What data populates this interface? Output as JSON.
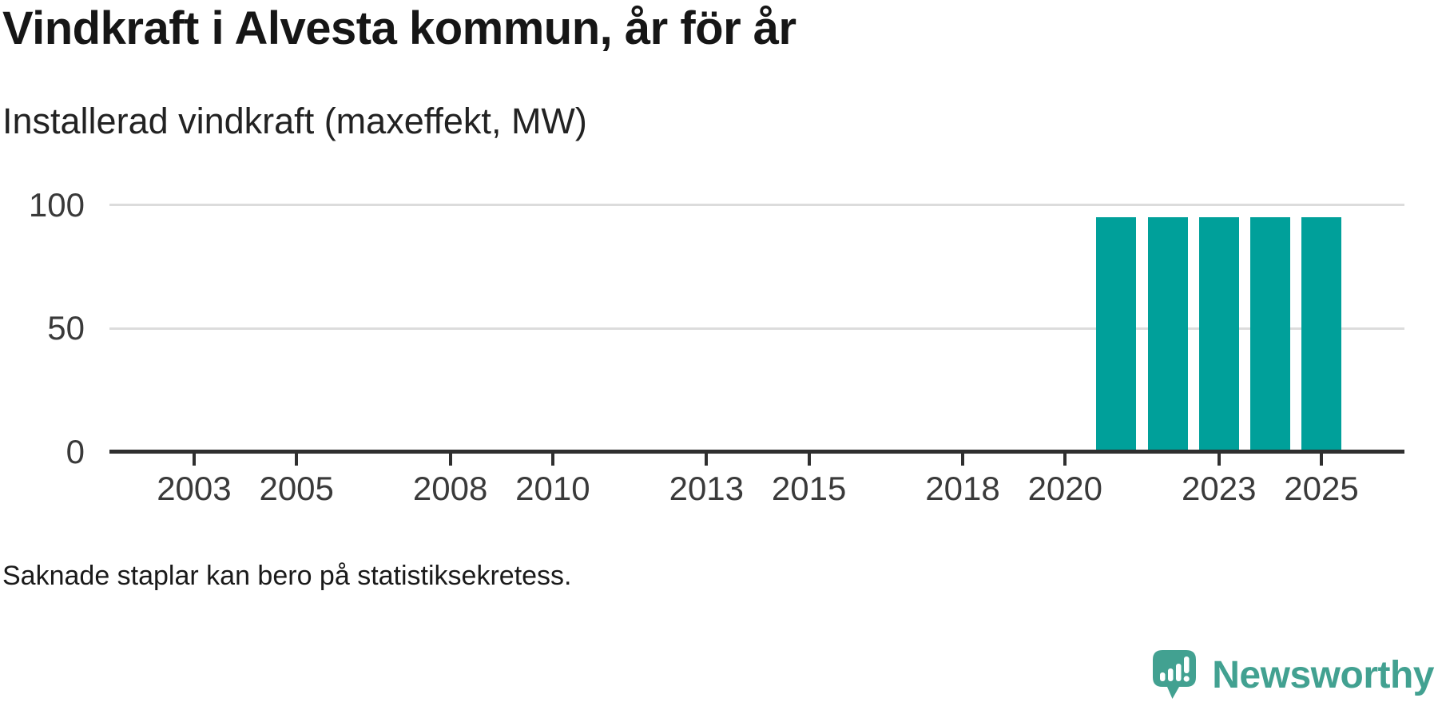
{
  "header": {
    "title": "Vindkraft i Alvesta kommun, år för år",
    "subtitle": "Installerad vindkraft (maxeffekt, MW)"
  },
  "footer": {
    "note": "Saknade staplar kan bero på statistiksekretess.",
    "brand": "Newsworthy"
  },
  "colors": {
    "bar": "#00a09a",
    "grid": "#dcdcdc",
    "axis": "#2f2f2f",
    "tick_label": "#3a3a3a",
    "text": "#1a1a1a",
    "brand": "#42a191"
  },
  "chart_data": {
    "type": "bar",
    "title": "Vindkraft i Alvesta kommun, år för år",
    "subtitle": "Installerad vindkraft (maxeffekt, MW)",
    "unit": "MW",
    "x_axis_years_shown": [
      2001,
      2026
    ],
    "x_ticks": [
      2003,
      2005,
      2008,
      2010,
      2013,
      2015,
      2018,
      2020,
      2023,
      2025
    ],
    "y_ticks": [
      0,
      50,
      100
    ],
    "ylim": [
      0,
      100
    ],
    "grid": "horizontal",
    "legend": "none",
    "bar_color": "#00a09a",
    "x": [
      2021,
      2022,
      2023,
      2024,
      2025
    ],
    "values": [
      95,
      95,
      95,
      95,
      95
    ],
    "missing_years_note": "Saknade staplar kan bero på statistiksekretess."
  }
}
